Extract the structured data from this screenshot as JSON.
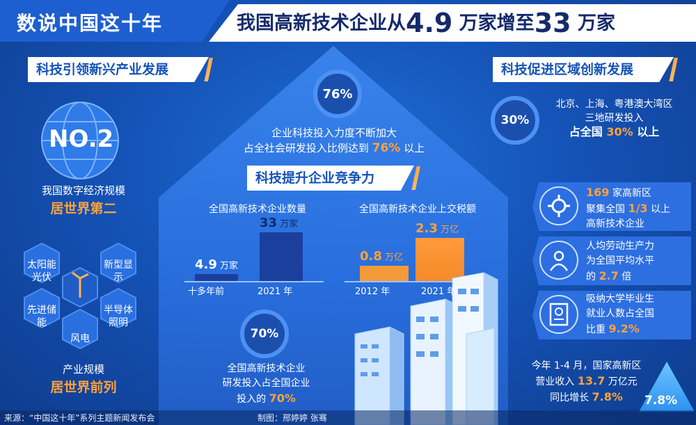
{
  "header": {
    "left_title": "数说中国这十年",
    "right_pre": "我国高新技术企业从",
    "right_num1": "4.9",
    "right_mid": "万家增至",
    "right_num2": "33",
    "right_post": "万家"
  },
  "left": {
    "tag": "科技引领新兴产业发展",
    "badge": "NO.2",
    "digital_line1": "我国数字经济规模",
    "digital_line2": "居世界第二",
    "hexes": [
      "太阳能光伏",
      "新型显示",
      "先进储能",
      "半导体照明",
      "风电"
    ],
    "industry_line1": "产业规模",
    "industry_line2": "居世界前列"
  },
  "center": {
    "pct_top": "76%",
    "top_line1": "企业科技投入力度不断加大",
    "top_line2_pre": "占全社会研发投入比例达到",
    "top_line2_num": "76%",
    "top_line2_post": "以上",
    "tag": "科技提升企业竞争力",
    "chart1_title": "全国高新技术企业数量",
    "chart2_title": "全国高新技术企业上交税额",
    "pct_bottom": "70%",
    "bottom_line1": "全国高新技术企业",
    "bottom_line2": "研发投入占全国企业",
    "bottom_line3_pre": "投入的",
    "bottom_line3_num": "70%"
  },
  "chart_data": [
    {
      "type": "bar",
      "title": "全国高新技术企业数量",
      "categories": [
        "十多年前",
        "2021 年"
      ],
      "values": [
        4.9,
        33
      ],
      "value_labels": [
        "4.9",
        "33"
      ],
      "unit": "万家"
    },
    {
      "type": "bar",
      "title": "全国高新技术企业上交税额",
      "categories": [
        "2012 年",
        "2021 年"
      ],
      "values": [
        0.8,
        2.3
      ],
      "value_labels": [
        "0.8",
        "2.3"
      ],
      "unit": "万亿"
    }
  ],
  "right": {
    "tag": "科技促进区域创新发展",
    "pct": "30%",
    "region_line1": "北京、上海、粤港澳大湾区",
    "region_line2": "三地研发投入",
    "region_line3_pre": "占全国",
    "region_line3_num": "30%",
    "region_line3_post": "以上",
    "card1_num": "169",
    "card1_a": "家高新区",
    "card1_b_pre": "聚集全国",
    "card1_b_num": "1/3",
    "card1_b_post": "以上",
    "card1_c": "高新技术企业",
    "card2_a": "人均劳动生产力",
    "card2_b": "为全国平均水平",
    "card2_c_pre": "的",
    "card2_c_num": "2.7",
    "card2_c_post": "倍",
    "card3_a": "吸纳大学毕业生",
    "card3_b": "就业人数占全国",
    "card3_c_pre": "比重",
    "card3_c_num": "9.2%",
    "rev_line1": "今年 1-4 月，国家高新区",
    "rev_line2_pre": "营业收入",
    "rev_line2_num": "13.7",
    "rev_line2_post": "万亿元",
    "rev_line3_pre": "同比增长",
    "rev_line3_num": "7.8%",
    "triangle_num": "7.8%"
  },
  "footer": {
    "source": "来源：“中国这十年”系列主题新闻发布会",
    "credit": "制图：邢婷婷  张骞"
  }
}
